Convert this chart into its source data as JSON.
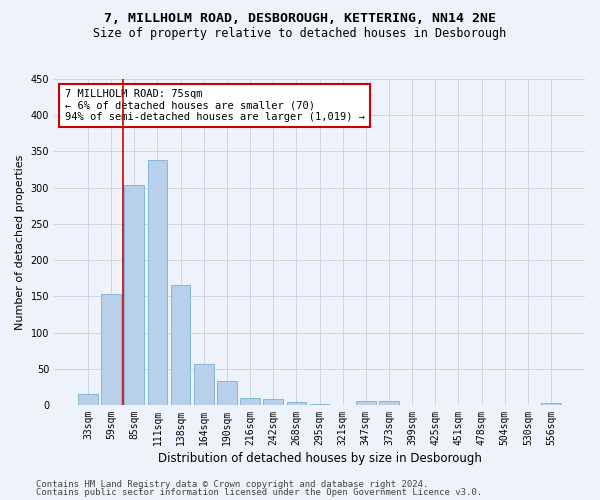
{
  "title": "7, MILLHOLM ROAD, DESBOROUGH, KETTERING, NN14 2NE",
  "subtitle": "Size of property relative to detached houses in Desborough",
  "xlabel": "Distribution of detached houses by size in Desborough",
  "ylabel": "Number of detached properties",
  "bar_color": "#b8d0ea",
  "bar_edge_color": "#7aafd4",
  "bg_color": "#eef2fa",
  "grid_color": "#c8cfe0",
  "categories": [
    "33sqm",
    "59sqm",
    "85sqm",
    "111sqm",
    "138sqm",
    "164sqm",
    "190sqm",
    "216sqm",
    "242sqm",
    "268sqm",
    "295sqm",
    "321sqm",
    "347sqm",
    "373sqm",
    "399sqm",
    "425sqm",
    "451sqm",
    "478sqm",
    "504sqm",
    "530sqm",
    "556sqm"
  ],
  "values": [
    15,
    153,
    304,
    338,
    165,
    56,
    33,
    10,
    8,
    4,
    1,
    0,
    5,
    5,
    0,
    0,
    0,
    0,
    0,
    0,
    3
  ],
  "ylim": [
    0,
    450
  ],
  "yticks": [
    0,
    50,
    100,
    150,
    200,
    250,
    300,
    350,
    400,
    450
  ],
  "annotation_text": "7 MILLHOLM ROAD: 75sqm\n← 6% of detached houses are smaller (70)\n94% of semi-detached houses are larger (1,019) →",
  "annotation_box_color": "#ffffff",
  "annotation_box_edge": "#cc0000",
  "vline_x": 1.5,
  "vline_color": "#cc0000",
  "vline_linewidth": 1.2,
  "footer1": "Contains HM Land Registry data © Crown copyright and database right 2024.",
  "footer2": "Contains public sector information licensed under the Open Government Licence v3.0.",
  "title_fontsize": 9.5,
  "subtitle_fontsize": 8.5,
  "tick_fontsize": 7,
  "ylabel_fontsize": 8,
  "xlabel_fontsize": 8.5,
  "annotation_fontsize": 7.5,
  "footer_fontsize": 6.5
}
